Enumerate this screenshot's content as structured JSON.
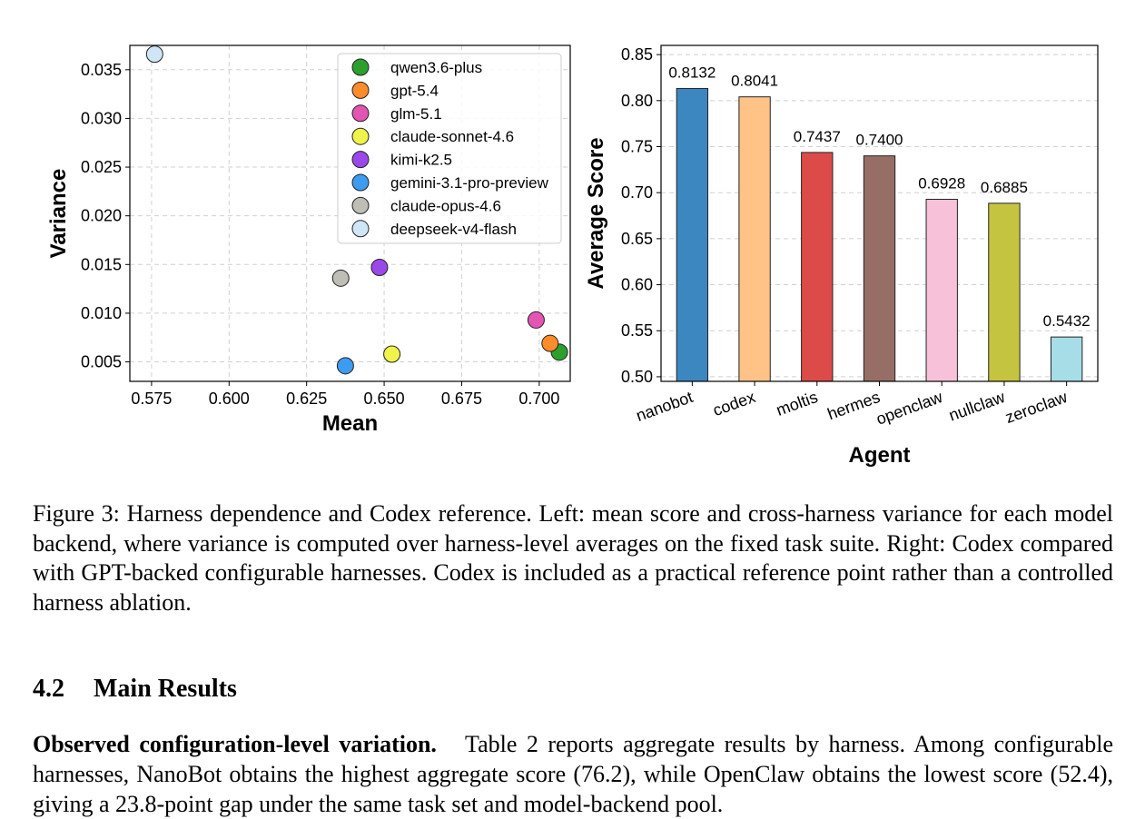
{
  "caption": "Figure 3: Harness dependence and Codex reference. Left: mean score and cross-harness variance for each model backend, where variance is computed over harness-level averages on the fixed task suite. Right: Codex compared with GPT-backed configurable harnesses. Codex is included as a practical reference point rather than a controlled harness ablation.",
  "section": {
    "number": "4.2",
    "title": "Main Results"
  },
  "paragraph": {
    "lead": "Observed configuration-level variation.",
    "text": "Table 2 reports aggregate results by harness. Among configurable harnesses, NanoBot obtains the highest aggregate score (76.2), while OpenClaw obtains the lowest score (52.4), giving a 23.8-point gap under the same task set and model-backend pool."
  },
  "chart_data": [
    {
      "type": "scatter",
      "xlabel": "Mean",
      "ylabel": "Variance",
      "xlim": [
        0.568,
        0.71
      ],
      "ylim": [
        0.003,
        0.0375
      ],
      "xticks": [
        "0.575",
        "0.600",
        "0.625",
        "0.650",
        "0.675",
        "0.700"
      ],
      "yticks": [
        "0.005",
        "0.010",
        "0.015",
        "0.020",
        "0.025",
        "0.030",
        "0.035"
      ],
      "grid": true,
      "legend_position": "top-right",
      "points": [
        {
          "name": "qwen3.6-plus",
          "x": 0.7065,
          "y": 0.006,
          "color": "#2ca02c"
        },
        {
          "name": "gpt-5.4",
          "x": 0.7035,
          "y": 0.0069,
          "color": "#ff8c2a"
        },
        {
          "name": "glm-5.1",
          "x": 0.699,
          "y": 0.0093,
          "color": "#e354b3"
        },
        {
          "name": "claude-sonnet-4.6",
          "x": 0.6525,
          "y": 0.0058,
          "color": "#eff34a"
        },
        {
          "name": "kimi-k2.5",
          "x": 0.6485,
          "y": 0.0147,
          "color": "#9b48ea"
        },
        {
          "name": "gemini-3.1-pro-preview",
          "x": 0.6375,
          "y": 0.0046,
          "color": "#3e9bf2"
        },
        {
          "name": "claude-opus-4.6",
          "x": 0.636,
          "y": 0.0136,
          "color": "#bebdb6"
        },
        {
          "name": "deepseek-v4-flash",
          "x": 0.576,
          "y": 0.0366,
          "color": "#cfe6f6"
        }
      ]
    },
    {
      "type": "bar",
      "xlabel": "Agent",
      "ylabel": "Average Score",
      "ylim": [
        0.495,
        0.86
      ],
      "yticks": [
        "0.50",
        "0.55",
        "0.60",
        "0.65",
        "0.70",
        "0.75",
        "0.80",
        "0.85"
      ],
      "grid": true,
      "categories": [
        "nanobot",
        "codex",
        "moltis",
        "hermes",
        "openclaw",
        "nullclaw",
        "zeroclaw"
      ],
      "values": [
        0.8132,
        0.8041,
        0.7437,
        0.74,
        0.6928,
        0.6885,
        0.5432
      ],
      "labels": [
        "0.8132",
        "0.8041",
        "0.7437",
        "0.7400",
        "0.6928",
        "0.6885",
        "0.5432"
      ],
      "colors": [
        "#3d87c0",
        "#ffc287",
        "#dd4b49",
        "#966e66",
        "#f7c2d9",
        "#c5c440",
        "#a6dde6"
      ]
    }
  ]
}
